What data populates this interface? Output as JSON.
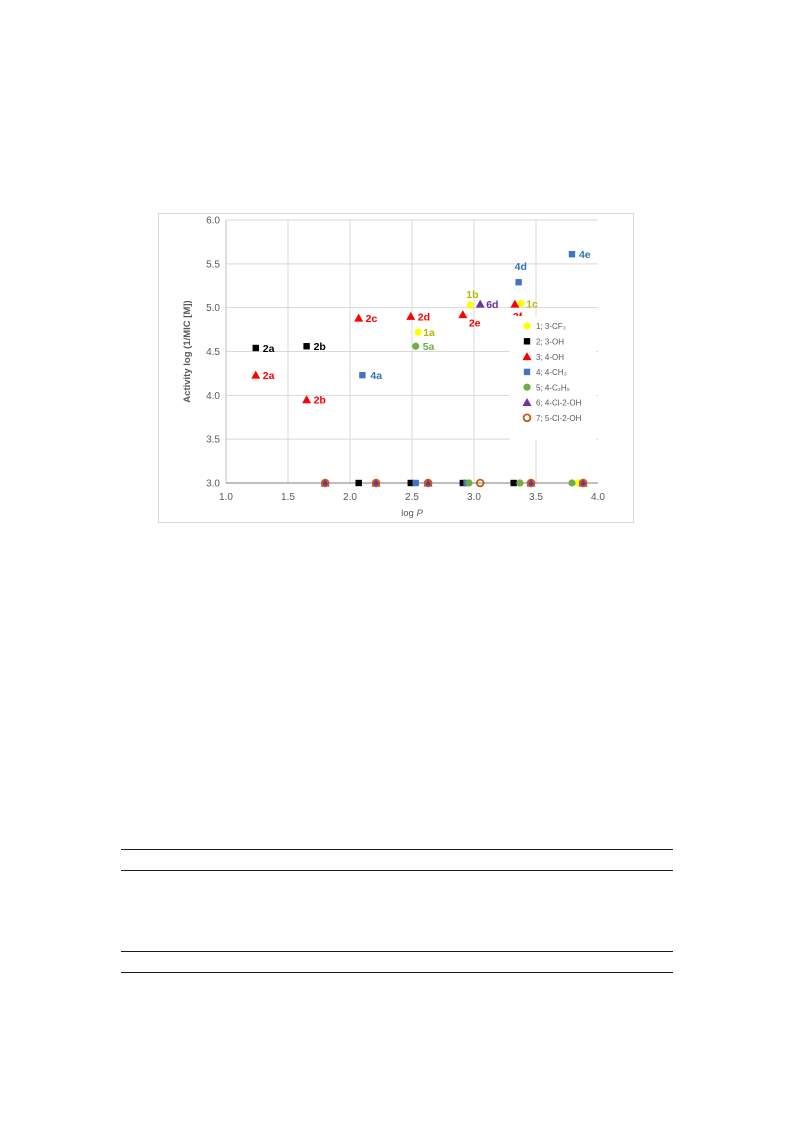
{
  "chart_data": {
    "type": "scatter",
    "xlabel": "log P",
    "ylabel": "Activity log (1/MIC [M])",
    "xlim": [
      1.0,
      4.0
    ],
    "ylim": [
      3.0,
      6.0
    ],
    "xticks": [
      "1.0",
      "1.5",
      "2.0",
      "2.5",
      "3.0",
      "3.5",
      "4.0"
    ],
    "yticks": [
      "3.0",
      "3.5",
      "4.0",
      "4.5",
      "5.0",
      "5.5",
      "6.0"
    ],
    "grid": true,
    "legend_position": "right",
    "series": [
      {
        "name": "1; 3-CF₃",
        "marker": "circle",
        "color": "#ffff00",
        "points": [
          {
            "x": 2.55,
            "y": 4.72,
            "label": "1a"
          },
          {
            "x": 2.97,
            "y": 5.03,
            "label": "1b"
          },
          {
            "x": 3.38,
            "y": 5.05,
            "label": "1c"
          },
          {
            "x": 1.8,
            "y": 3.0
          },
          {
            "x": 2.21,
            "y": 3.0
          },
          {
            "x": 2.63,
            "y": 3.0
          },
          {
            "x": 2.93,
            "y": 3.0
          },
          {
            "x": 3.46,
            "y": 3.0
          },
          {
            "x": 3.84,
            "y": 3.0
          }
        ]
      },
      {
        "name": "2; 3-OH",
        "marker": "square",
        "color": "#000000",
        "points": [
          {
            "x": 1.24,
            "y": 4.54,
            "label": "2a"
          },
          {
            "x": 1.65,
            "y": 4.56,
            "label": "2b"
          },
          {
            "x": 2.07,
            "y": 3.0
          },
          {
            "x": 2.49,
            "y": 3.0
          },
          {
            "x": 2.91,
            "y": 3.0
          },
          {
            "x": 3.32,
            "y": 3.0
          }
        ]
      },
      {
        "name": "3; 4-OH",
        "marker": "triangle",
        "color": "#ff0000",
        "points": [
          {
            "x": 1.24,
            "y": 4.23,
            "label": "2a"
          },
          {
            "x": 1.65,
            "y": 3.95,
            "label": "2b"
          },
          {
            "x": 2.07,
            "y": 4.88,
            "label": "2c"
          },
          {
            "x": 2.49,
            "y": 4.9,
            "label": "2d"
          },
          {
            "x": 2.91,
            "y": 4.92,
            "label": "2e"
          },
          {
            "x": 3.33,
            "y": 5.04,
            "label": "2f"
          }
        ]
      },
      {
        "name": "4; 4-CH₃",
        "marker": "square",
        "color": "#4472c4",
        "points": [
          {
            "x": 2.1,
            "y": 4.23,
            "label": "4a"
          },
          {
            "x": 3.36,
            "y": 5.29,
            "label": "4d"
          },
          {
            "x": 3.79,
            "y": 5.61,
            "label": "4e"
          },
          {
            "x": 2.53,
            "y": 3.0
          },
          {
            "x": 2.94,
            "y": 3.0
          }
        ]
      },
      {
        "name": "5; 4-C₂H₅",
        "marker": "circle",
        "color": "#70ad47",
        "points": [
          {
            "x": 2.53,
            "y": 4.56,
            "label": "5a"
          },
          {
            "x": 2.96,
            "y": 3.0
          },
          {
            "x": 3.37,
            "y": 3.0
          },
          {
            "x": 3.79,
            "y": 3.0
          }
        ]
      },
      {
        "name": "6; 4-Cl-2-OH",
        "marker": "triangle",
        "color": "#7030a0",
        "points": [
          {
            "x": 3.05,
            "y": 5.04,
            "label": "6d"
          },
          {
            "x": 1.8,
            "y": 3.0
          },
          {
            "x": 2.21,
            "y": 3.0
          },
          {
            "x": 2.63,
            "y": 3.0
          },
          {
            "x": 3.46,
            "y": 3.0
          },
          {
            "x": 3.88,
            "y": 3.0
          }
        ]
      },
      {
        "name": "7; 5-Cl-2-OH",
        "marker": "open-circle",
        "color": "#c55a11",
        "points": [
          {
            "x": 1.8,
            "y": 3.0
          },
          {
            "x": 2.21,
            "y": 3.0
          },
          {
            "x": 2.63,
            "y": 3.0
          },
          {
            "x": 3.05,
            "y": 3.0
          },
          {
            "x": 3.46,
            "y": 3.0
          },
          {
            "x": 3.88,
            "y": 3.0
          }
        ]
      }
    ],
    "label_colors": {
      "1": "#b8b800",
      "2": "#000000",
      "3": "#ff0000",
      "4": "#2e75b6",
      "5": "#70ad47",
      "6": "#7030a0"
    }
  }
}
